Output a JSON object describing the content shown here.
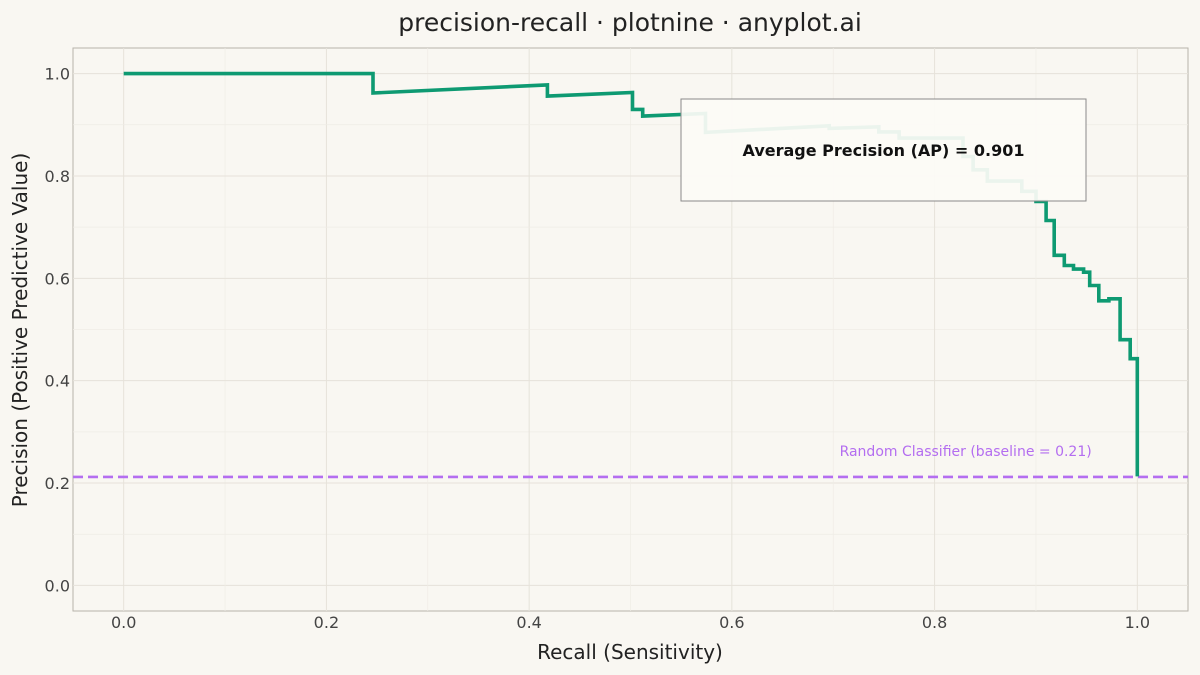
{
  "chart_data": {
    "type": "line",
    "title": "precision-recall · plotnine · anyplot.ai",
    "xlabel": "Recall (Sensitivity)",
    "ylabel": "Precision (Positive Predictive Value)",
    "xlim": [
      -0.05,
      1.05
    ],
    "ylim": [
      -0.05,
      1.05
    ],
    "xticks": [
      "0.0",
      "0.2",
      "0.4",
      "0.6",
      "0.8",
      "1.0"
    ],
    "yticks": [
      "0.0",
      "0.2",
      "0.4",
      "0.6",
      "0.8",
      "1.0"
    ],
    "grid": true,
    "series": [
      {
        "color": "#0e9a72",
        "style": "step",
        "points": [
          [
            0.0,
            1.0
          ],
          [
            0.246,
            1.0
          ],
          [
            0.246,
            0.962
          ],
          [
            0.418,
            0.978
          ],
          [
            0.418,
            0.956
          ],
          [
            0.502,
            0.963
          ],
          [
            0.502,
            0.93
          ],
          [
            0.512,
            0.93
          ],
          [
            0.512,
            0.917
          ],
          [
            0.574,
            0.922
          ],
          [
            0.574,
            0.885
          ],
          [
            0.696,
            0.898
          ],
          [
            0.696,
            0.893
          ],
          [
            0.745,
            0.896
          ],
          [
            0.745,
            0.886
          ],
          [
            0.765,
            0.886
          ],
          [
            0.765,
            0.874
          ],
          [
            0.828,
            0.874
          ],
          [
            0.828,
            0.838
          ],
          [
            0.838,
            0.838
          ],
          [
            0.838,
            0.812
          ],
          [
            0.852,
            0.812
          ],
          [
            0.852,
            0.79
          ],
          [
            0.886,
            0.79
          ],
          [
            0.886,
            0.77
          ],
          [
            0.9,
            0.77
          ],
          [
            0.9,
            0.75
          ],
          [
            0.91,
            0.75
          ],
          [
            0.91,
            0.713
          ],
          [
            0.918,
            0.713
          ],
          [
            0.918,
            0.645
          ],
          [
            0.928,
            0.645
          ],
          [
            0.928,
            0.625
          ],
          [
            0.937,
            0.625
          ],
          [
            0.937,
            0.618
          ],
          [
            0.947,
            0.618
          ],
          [
            0.947,
            0.612
          ],
          [
            0.953,
            0.612
          ],
          [
            0.953,
            0.586
          ],
          [
            0.962,
            0.586
          ],
          [
            0.962,
            0.556
          ],
          [
            0.972,
            0.556
          ],
          [
            0.972,
            0.56
          ],
          [
            0.983,
            0.56
          ],
          [
            0.983,
            0.48
          ],
          [
            0.993,
            0.48
          ],
          [
            0.993,
            0.443
          ],
          [
            1.0,
            0.443
          ],
          [
            1.0,
            0.213
          ]
        ]
      }
    ],
    "baseline": {
      "y": 0.212,
      "label": "Random Classifier (baseline = 0.21)",
      "color": "#b46ef0"
    },
    "annotation": {
      "text": "Average Precision (AP) = 0.901"
    }
  }
}
